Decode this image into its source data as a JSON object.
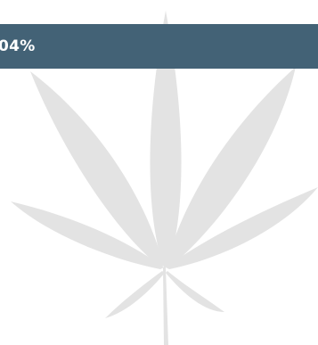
{
  "banner": {
    "text": "04%",
    "background_color": "#436276",
    "text_color": "#ffffff"
  },
  "illustration": {
    "icon": "cannabis-leaf-icon",
    "color": "#e3e3e3"
  }
}
